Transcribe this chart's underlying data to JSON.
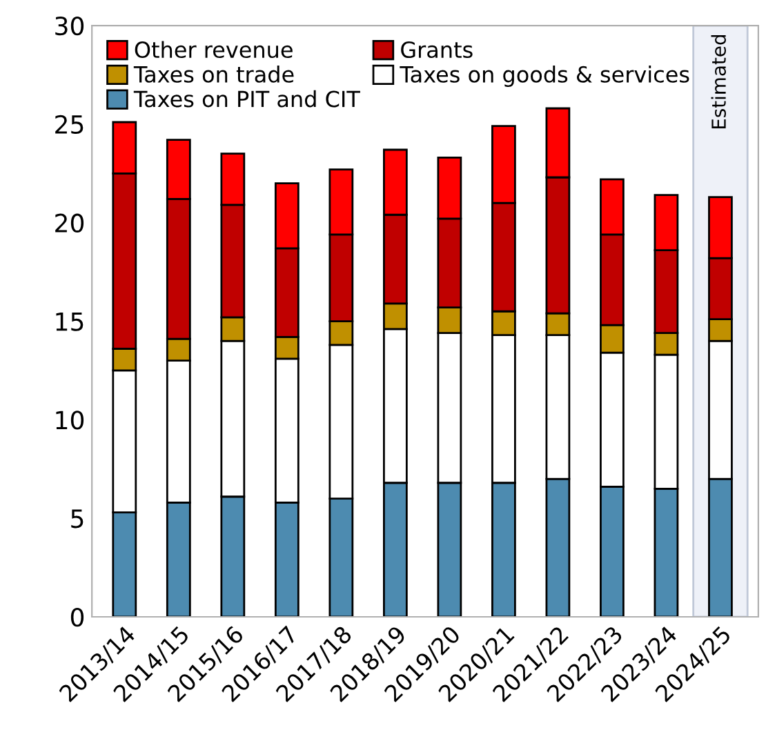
{
  "chart_data": {
    "type": "bar",
    "stacked": true,
    "categories": [
      "2013/14",
      "2014/15",
      "2015/16",
      "2016/17",
      "2017/18",
      "2018/19",
      "2019/20",
      "2020/21",
      "2021/22",
      "2022/23",
      "2023/24",
      "2024/25"
    ],
    "series": [
      {
        "name": "Taxes on PIT and CIT",
        "color": "#4d8bb0",
        "values": [
          5.3,
          5.8,
          6.1,
          5.8,
          6.0,
          6.8,
          6.8,
          6.8,
          7.0,
          6.6,
          6.5,
          7.0
        ]
      },
      {
        "name": "Taxes on goods & services",
        "color": "#ffffff",
        "values": [
          7.2,
          7.2,
          7.9,
          7.3,
          7.8,
          7.8,
          7.6,
          7.5,
          7.3,
          6.8,
          6.8,
          7.0
        ]
      },
      {
        "name": "Taxes on trade",
        "color": "#c09000",
        "values": [
          1.1,
          1.1,
          1.2,
          1.1,
          1.2,
          1.3,
          1.3,
          1.2,
          1.1,
          1.4,
          1.1,
          1.1
        ]
      },
      {
        "name": "Grants",
        "color": "#c00000",
        "values": [
          8.9,
          7.1,
          5.7,
          4.5,
          4.4,
          4.5,
          4.5,
          5.5,
          6.9,
          4.6,
          4.2,
          3.1
        ]
      },
      {
        "name": "Other revenue",
        "color": "#ff0000",
        "values": [
          2.6,
          3.0,
          2.6,
          3.3,
          3.3,
          3.3,
          3.1,
          3.9,
          3.5,
          2.8,
          2.8,
          3.1
        ]
      }
    ],
    "ylim": [
      0,
      30
    ],
    "yticks": [
      0,
      5,
      10,
      15,
      20,
      25,
      30
    ],
    "bands": [
      {
        "axis": "x",
        "from": "2024/25",
        "to": "2024/25",
        "label": "Estimated",
        "color": "#eef1f8"
      }
    ],
    "legend": "top left",
    "grid": false
  }
}
